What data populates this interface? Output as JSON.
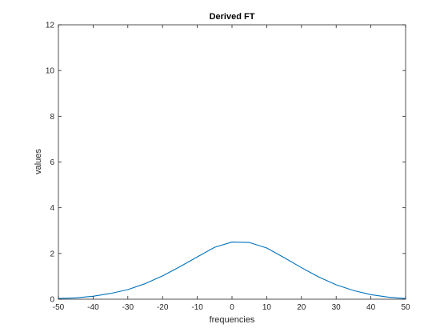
{
  "chart_data": {
    "type": "line",
    "title": "Derived FT",
    "xlabel": "frequencies",
    "ylabel": "values",
    "xlim": [
      -50,
      50
    ],
    "ylim": [
      0,
      12
    ],
    "x_ticks": [
      -50,
      -40,
      -30,
      -20,
      -10,
      0,
      10,
      20,
      30,
      40,
      50
    ],
    "y_ticks": [
      0,
      2,
      4,
      6,
      8,
      10,
      12
    ],
    "x_tick_labels": [
      "-50",
      "-40",
      "-30",
      "-20",
      "-10",
      "0",
      "10",
      "20",
      "30",
      "40",
      "50"
    ],
    "y_tick_labels": [
      "0",
      "2",
      "4",
      "6",
      "8",
      "10",
      "12"
    ],
    "grid": false,
    "series": [
      {
        "color": "#0072bd",
        "x": [
          -50,
          -45,
          -40,
          -35,
          -30,
          -25,
          -20,
          -15,
          -10,
          -5,
          0,
          5,
          10,
          15,
          20,
          25,
          30,
          35,
          40,
          45,
          50
        ],
        "y": [
          0.03,
          0.06,
          0.13,
          0.25,
          0.42,
          0.68,
          1.02,
          1.42,
          1.85,
          2.27,
          2.5,
          2.48,
          2.24,
          1.82,
          1.38,
          0.97,
          0.63,
          0.38,
          0.2,
          0.09,
          0.03
        ]
      }
    ]
  }
}
